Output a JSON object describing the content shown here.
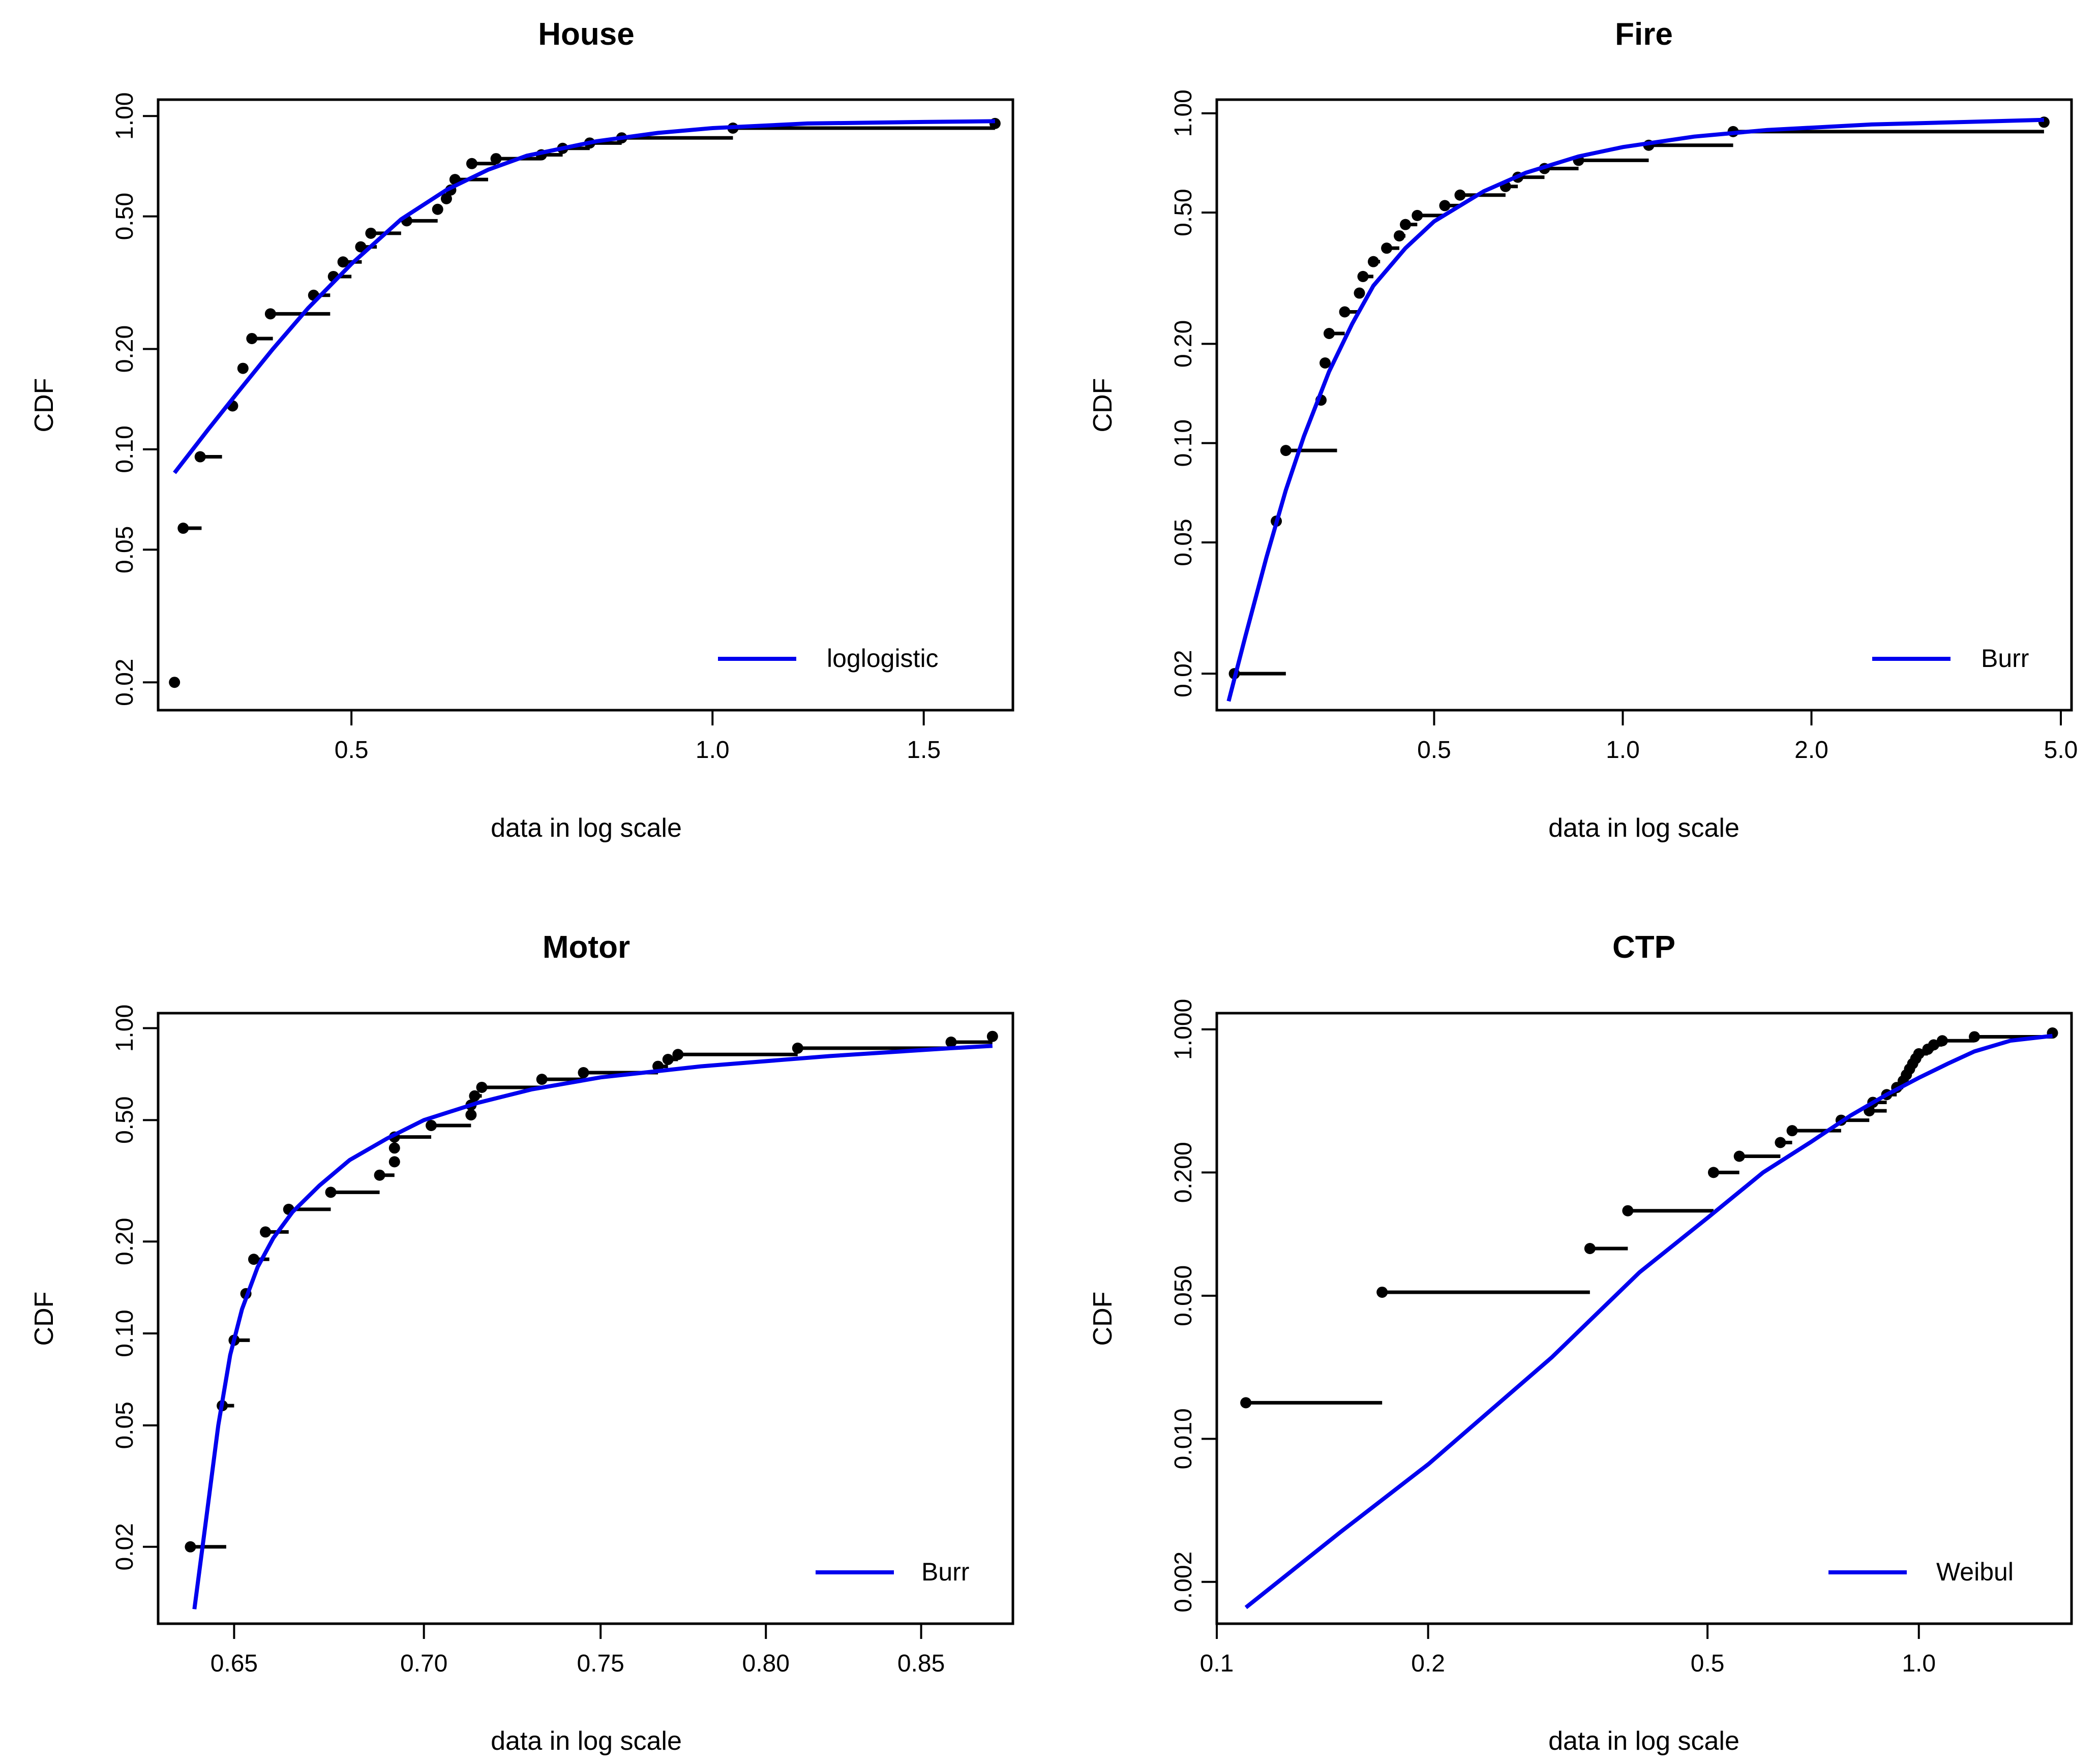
{
  "colors": {
    "fit": "#0000ee",
    "empirical": "#000000",
    "frame": "#000000"
  },
  "chart_data": [
    {
      "type": "line",
      "title": "House",
      "xlabel": "data in log scale",
      "ylabel": "CDF",
      "x_scale": "log",
      "y_scale": "log",
      "xlim": [
        0.345,
        1.78
      ],
      "ylim": [
        0.0165,
        1.12
      ],
      "xticks": [
        {
          "value": 0.5,
          "label": "0.5"
        },
        {
          "value": 1.0,
          "label": "1.0"
        },
        {
          "value": 1.5,
          "label": "1.5"
        }
      ],
      "yticks": [
        {
          "value": 0.02,
          "label": "0.02"
        },
        {
          "value": 0.05,
          "label": "0.05"
        },
        {
          "value": 0.1,
          "label": "0.10"
        },
        {
          "value": 0.2,
          "label": "0.20"
        },
        {
          "value": 0.5,
          "label": "0.50"
        },
        {
          "value": 1.0,
          "label": "1.00"
        }
      ],
      "legend": {
        "position": "bottom-right",
        "label": "loglogistic"
      },
      "empirical": {
        "name": "empirical",
        "x": [
          0.356,
          0.362,
          0.374,
          0.398,
          0.406,
          0.413,
          0.428,
          0.465,
          0.483,
          0.492,
          0.509,
          0.519,
          0.556,
          0.59,
          0.6,
          0.605,
          0.61,
          0.63,
          0.66,
          0.72,
          0.75,
          0.79,
          0.84,
          1.04,
          1.72
        ],
        "y": [
          0.02,
          0.058,
          0.095,
          0.135,
          0.175,
          0.215,
          0.255,
          0.29,
          0.33,
          0.365,
          0.405,
          0.445,
          0.485,
          0.525,
          0.565,
          0.6,
          0.645,
          0.72,
          0.745,
          0.765,
          0.8,
          0.83,
          0.86,
          0.92,
          0.95
        ],
        "step_end": [
          0.356,
          0.375,
          0.39,
          0.4,
          0.41,
          0.43,
          0.48,
          0.48,
          0.5,
          0.51,
          0.525,
          0.55,
          0.59,
          0.59,
          0.6,
          0.61,
          0.65,
          0.66,
          0.72,
          0.75,
          0.79,
          0.84,
          1.04,
          1.72,
          1.72
        ]
      },
      "fit": {
        "name": "loglogistic",
        "x": [
          0.356,
          0.38,
          0.4,
          0.43,
          0.46,
          0.5,
          0.55,
          0.6,
          0.65,
          0.7,
          0.8,
          0.9,
          1.0,
          1.2,
          1.5,
          1.72
        ],
        "y": [
          0.085,
          0.115,
          0.145,
          0.2,
          0.265,
          0.36,
          0.49,
          0.6,
          0.69,
          0.76,
          0.84,
          0.89,
          0.92,
          0.95,
          0.96,
          0.965
        ]
      }
    },
    {
      "type": "line",
      "title": "Fire",
      "xlabel": "data in log scale",
      "ylabel": "CDF",
      "x_scale": "log",
      "y_scale": "log",
      "xlim": [
        0.225,
        5.2
      ],
      "ylim": [
        0.0155,
        1.1
      ],
      "xticks": [
        {
          "value": 0.5,
          "label": "0.5"
        },
        {
          "value": 1.0,
          "label": "1.0"
        },
        {
          "value": 2.0,
          "label": "2.0"
        },
        {
          "value": 5.0,
          "label": "5.0"
        }
      ],
      "yticks": [
        {
          "value": 0.02,
          "label": "0.02"
        },
        {
          "value": 0.05,
          "label": "0.05"
        },
        {
          "value": 0.1,
          "label": "0.10"
        },
        {
          "value": 0.2,
          "label": "0.20"
        },
        {
          "value": 0.5,
          "label": "0.50"
        },
        {
          "value": 1.0,
          "label": "1.00"
        }
      ],
      "legend": {
        "position": "bottom-right",
        "label": "Burr"
      },
      "empirical": {
        "name": "empirical",
        "x": [
          0.24,
          0.28,
          0.29,
          0.33,
          0.335,
          0.34,
          0.36,
          0.38,
          0.385,
          0.4,
          0.42,
          0.44,
          0.45,
          0.47,
          0.52,
          0.55,
          0.65,
          0.68,
          0.75,
          0.85,
          1.1,
          1.5,
          4.7
        ],
        "y": [
          0.02,
          0.058,
          0.095,
          0.135,
          0.175,
          0.215,
          0.25,
          0.285,
          0.32,
          0.355,
          0.39,
          0.425,
          0.46,
          0.49,
          0.525,
          0.565,
          0.6,
          0.64,
          0.68,
          0.72,
          0.8,
          0.88,
          0.94
        ],
        "step_end": [
          0.29,
          0.28,
          0.35,
          0.33,
          0.34,
          0.36,
          0.38,
          0.385,
          0.4,
          0.41,
          0.44,
          0.45,
          0.47,
          0.52,
          0.55,
          0.65,
          0.68,
          0.75,
          0.85,
          1.1,
          1.5,
          4.7,
          4.7
        ]
      },
      "fit": {
        "name": "Burr",
        "x": [
          0.235,
          0.25,
          0.27,
          0.29,
          0.31,
          0.34,
          0.37,
          0.4,
          0.45,
          0.5,
          0.6,
          0.7,
          0.85,
          1.0,
          1.3,
          1.7,
          2.5,
          4.7
        ],
        "y": [
          0.0165,
          0.026,
          0.045,
          0.072,
          0.105,
          0.165,
          0.23,
          0.3,
          0.39,
          0.47,
          0.58,
          0.66,
          0.74,
          0.79,
          0.85,
          0.89,
          0.925,
          0.955
        ]
      }
    },
    {
      "type": "line",
      "title": "Motor",
      "xlabel": "data in log scale",
      "ylabel": "CDF",
      "x_scale": "log",
      "y_scale": "log",
      "xlim": [
        0.631,
        0.881
      ],
      "ylim": [
        0.0112,
        1.12
      ],
      "xticks": [
        {
          "value": 0.65,
          "label": "0.65"
        },
        {
          "value": 0.7,
          "label": "0.70"
        },
        {
          "value": 0.75,
          "label": "0.75"
        },
        {
          "value": 0.8,
          "label": "0.80"
        },
        {
          "value": 0.85,
          "label": "0.85"
        }
      ],
      "yticks": [
        {
          "value": 0.02,
          "label": "0.02"
        },
        {
          "value": 0.05,
          "label": "0.05"
        },
        {
          "value": 0.1,
          "label": "0.10"
        },
        {
          "value": 0.2,
          "label": "0.20"
        },
        {
          "value": 0.5,
          "label": "0.50"
        },
        {
          "value": 1.0,
          "label": "1.00"
        }
      ],
      "legend": {
        "position": "bottom-right",
        "label": "Burr"
      },
      "empirical": {
        "name": "empirical",
        "x": [
          0.639,
          0.647,
          0.65,
          0.653,
          0.655,
          0.658,
          0.664,
          0.675,
          0.688,
          0.692,
          0.692,
          0.692,
          0.702,
          0.713,
          0.713,
          0.714,
          0.716,
          0.733,
          0.745,
          0.767,
          0.77,
          0.773,
          0.81,
          0.86,
          0.874
        ],
        "y": [
          0.02,
          0.058,
          0.095,
          0.135,
          0.175,
          0.215,
          0.255,
          0.29,
          0.33,
          0.365,
          0.405,
          0.44,
          0.48,
          0.52,
          0.56,
          0.6,
          0.64,
          0.68,
          0.715,
          0.75,
          0.79,
          0.82,
          0.86,
          0.9,
          0.94
        ],
        "step_end": [
          0.648,
          0.65,
          0.654,
          0.654,
          0.659,
          0.664,
          0.675,
          0.688,
          0.692,
          0.692,
          0.692,
          0.702,
          0.713,
          0.713,
          0.714,
          0.716,
          0.733,
          0.745,
          0.767,
          0.77,
          0.773,
          0.81,
          0.86,
          0.874,
          0.874
        ]
      },
      "fit": {
        "name": "Burr",
        "x": [
          0.64,
          0.643,
          0.646,
          0.649,
          0.652,
          0.656,
          0.66,
          0.665,
          0.672,
          0.68,
          0.69,
          0.7,
          0.715,
          0.73,
          0.75,
          0.78,
          0.82,
          0.86,
          0.874
        ],
        "y": [
          0.0125,
          0.025,
          0.05,
          0.085,
          0.12,
          0.165,
          0.205,
          0.25,
          0.305,
          0.37,
          0.435,
          0.5,
          0.57,
          0.63,
          0.69,
          0.75,
          0.81,
          0.86,
          0.875
        ]
      }
    },
    {
      "type": "line",
      "title": "CTP",
      "xlabel": "data in log scale",
      "ylabel": "CDF",
      "x_scale": "log",
      "y_scale": "log",
      "xlim": [
        0.1,
        1.65
      ],
      "ylim": [
        0.00125,
        1.2
      ],
      "xticks": [
        {
          "value": 0.1,
          "label": "0.1"
        },
        {
          "value": 0.2,
          "label": "0.2"
        },
        {
          "value": 0.5,
          "label": "0.5"
        },
        {
          "value": 1.0,
          "label": "1.0"
        }
      ],
      "yticks": [
        {
          "value": 0.002,
          "label": "0.002"
        },
        {
          "value": 0.01,
          "label": "0.010"
        },
        {
          "value": 0.05,
          "label": "0.050"
        },
        {
          "value": 0.2,
          "label": "0.200"
        },
        {
          "value": 1.0,
          "label": "1.000"
        }
      ],
      "legend": {
        "position": "bottom-right",
        "label": "Weibul"
      },
      "empirical": {
        "name": "empirical",
        "x": [
          0.11,
          0.172,
          0.34,
          0.385,
          0.51,
          0.555,
          0.635,
          0.66,
          0.775,
          0.85,
          0.86,
          0.9,
          0.93,
          0.95,
          0.96,
          0.97,
          0.98,
          0.99,
          1.0,
          1.03,
          1.05,
          1.08,
          1.2,
          1.55
        ],
        "y": [
          0.015,
          0.052,
          0.085,
          0.13,
          0.2,
          0.24,
          0.28,
          0.32,
          0.36,
          0.4,
          0.44,
          0.48,
          0.52,
          0.56,
          0.6,
          0.64,
          0.68,
          0.72,
          0.76,
          0.8,
          0.84,
          0.88,
          0.92,
          0.96
        ],
        "step_end": [
          0.172,
          0.34,
          0.385,
          0.51,
          0.555,
          0.635,
          0.66,
          0.775,
          0.85,
          0.9,
          0.9,
          0.93,
          0.95,
          0.96,
          0.97,
          0.98,
          0.99,
          1.0,
          1.03,
          1.05,
          1.08,
          1.2,
          1.55,
          1.55
        ]
      },
      "fit": {
        "name": "Weibul",
        "x": [
          0.11,
          0.15,
          0.2,
          0.3,
          0.4,
          0.5,
          0.6,
          0.7,
          0.8,
          0.9,
          1.0,
          1.1,
          1.2,
          1.35,
          1.55
        ],
        "y": [
          0.0015,
          0.0035,
          0.0075,
          0.025,
          0.065,
          0.12,
          0.2,
          0.28,
          0.38,
          0.48,
          0.58,
          0.68,
          0.78,
          0.88,
          0.93
        ]
      }
    }
  ]
}
